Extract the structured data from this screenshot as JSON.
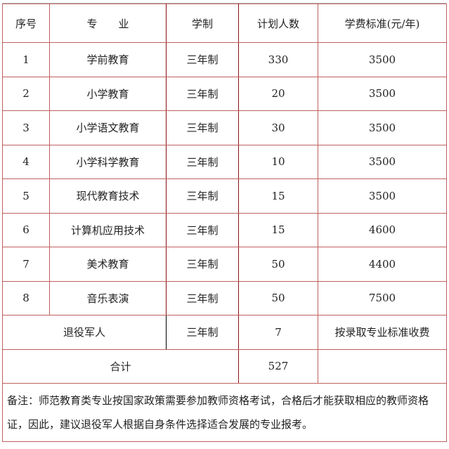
{
  "headers": [
    "序号",
    "专　　业",
    "学制",
    "计划人数",
    "学费标准(元/年)"
  ],
  "rows": [
    {
      "no": "1",
      "major": "学前教育",
      "duration": "三年制",
      "plan": "330",
      "fee": "3500"
    },
    {
      "no": "2",
      "major": "小学教育",
      "duration": "三年制",
      "plan": "20",
      "fee": "3500"
    },
    {
      "no": "3",
      "major": "小学语文教育",
      "duration": "三年制",
      "plan": "30",
      "fee": "3500"
    },
    {
      "no": "4",
      "major": "小学科学教育",
      "duration": "三年制",
      "plan": "10",
      "fee": "3500"
    },
    {
      "no": "5",
      "major": "现代教育技术",
      "duration": "三年制",
      "plan": "15",
      "fee": "3500"
    },
    {
      "no": "6",
      "major": "计算机应用技术",
      "duration": "三年制",
      "plan": "15",
      "fee": "4600"
    },
    {
      "no": "7",
      "major": "美术教育",
      "duration": "三年制",
      "plan": "50",
      "fee": "4400"
    },
    {
      "no": "8",
      "major": "音乐表演",
      "duration": "三年制",
      "plan": "50",
      "fee": "7500"
    }
  ],
  "veterans": {
    "label": "退役军人",
    "duration": "三年制",
    "plan": "7",
    "fee": "按录取专业标准收费"
  },
  "total": {
    "label": "合计",
    "plan": "527"
  },
  "note": "备注：师范教育类专业按国家政策需要参加教师资格考试，合格后才能获取相应的教师资格证，因此，建议退役军人根据自身条件选择适合发展的专业报考。"
}
